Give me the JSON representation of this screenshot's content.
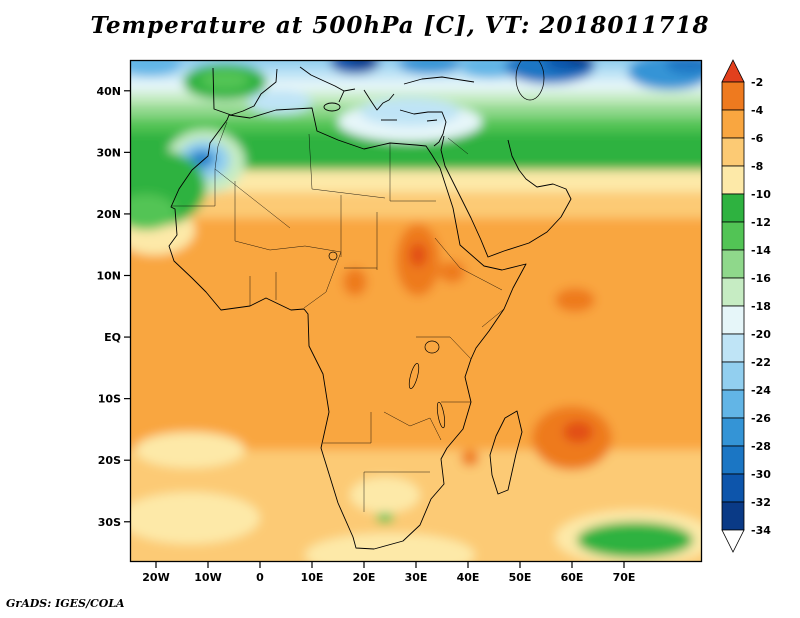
{
  "title": "Temperature at 500hPa [C], VT: 2018011718",
  "footer": "GrADS: IGES/COLA",
  "chart_data": {
    "type": "heatmap",
    "title": "Temperature at 500hPa [C], VT: 2018011718",
    "variable": "Temperature",
    "level": "500hPa",
    "units": "C",
    "valid_time": "2018011718",
    "region": "Africa / Mediterranean / western Indian Ocean",
    "lon_range": [
      -25,
      85
    ],
    "lat_range": [
      -36.5,
      45
    ],
    "grid": false,
    "contour_interval": 2,
    "x_ticks": [
      {
        "label": "20W",
        "lon": -20
      },
      {
        "label": "10W",
        "lon": -10
      },
      {
        "label": "0",
        "lon": 0
      },
      {
        "label": "10E",
        "lon": 10
      },
      {
        "label": "20E",
        "lon": 20
      },
      {
        "label": "30E",
        "lon": 30
      },
      {
        "label": "40E",
        "lon": 40
      },
      {
        "label": "50E",
        "lon": 50
      },
      {
        "label": "60E",
        "lon": 60
      },
      {
        "label": "70E",
        "lon": 70
      }
    ],
    "y_ticks": [
      {
        "label": "40N",
        "lat": 40
      },
      {
        "label": "30N",
        "lat": 30
      },
      {
        "label": "20N",
        "lat": 20
      },
      {
        "label": "10N",
        "lat": 10
      },
      {
        "label": "EQ",
        "lat": 0
      },
      {
        "label": "10S",
        "lat": -10
      },
      {
        "label": "20S",
        "lat": -20
      },
      {
        "label": "30S",
        "lat": -30
      }
    ],
    "legend": {
      "position": "right",
      "values": [
        -2,
        -4,
        -6,
        -8,
        -10,
        -12,
        -14,
        -16,
        -18,
        -20,
        -22,
        -24,
        -26,
        -28,
        -30,
        -32,
        -34
      ],
      "box_colors": [
        "#ee7a1f",
        "#f9a640",
        "#fcca74",
        "#fde9a8",
        "#2eb240",
        "#52c455",
        "#8fd88b",
        "#c6ecc3",
        "#e6f6f9",
        "#bfe4f6",
        "#92cfef",
        "#62b5e6",
        "#3494d6",
        "#1b76c4",
        "#0d55ab",
        "#0a3a86"
      ],
      "above_color": "#e2401d",
      "below_color": "#ffffff"
    },
    "grid_estimate": {
      "comment": "Approximate 500hPa temperature (C) read from the shaded field",
      "lons": [
        -20,
        -10,
        0,
        10,
        20,
        30,
        40,
        50,
        60,
        70
      ],
      "lats": [
        40,
        30,
        20,
        10,
        0,
        -10,
        -20,
        -30
      ],
      "values_c": [
        [
          -15,
          -18,
          -20,
          -21,
          -22,
          -22,
          -22,
          -24,
          -27,
          -24
        ],
        [
          -13,
          -16,
          -12,
          -12,
          -13,
          -14,
          -15,
          -13,
          -12,
          -11
        ],
        [
          -9,
          -10,
          -9,
          -8,
          -8,
          -8,
          -8,
          -8,
          -7,
          -7
        ],
        [
          -6,
          -6,
          -6,
          -6,
          -5,
          -4,
          -6,
          -6,
          -6,
          -6
        ],
        [
          -6,
          -6,
          -6,
          -6,
          -6,
          -6,
          -6,
          -6,
          -5,
          -6
        ],
        [
          -7,
          -6,
          -6,
          -6,
          -6,
          -6,
          -6,
          -6,
          -5,
          -6
        ],
        [
          -8,
          -7,
          -7,
          -6,
          -6,
          -6,
          -6,
          -6,
          -4,
          -6
        ],
        [
          -9,
          -9,
          -8,
          -8,
          -8,
          -8,
          -8,
          -8,
          -9,
          -11
        ]
      ]
    },
    "features": [
      "Warm pocket near -4C over Sudan/Ethiopia around 30E,13N",
      "Warm pocket near -4C over Indian Ocean east of Madagascar around 60E,17S",
      "Green band (-12 to -16C) across North Africa near 28-35N",
      "Cold blue air (-20C and colder) over Europe/Mediterranean, darkest (-30/-34C) along the northern edge",
      "Cool green patch (-12C) in the far southeast ocean near 70E,33S",
      "Cold pocket (-18 to -26C) over the subtropical Atlantic near Morocco around 10W,28N"
    ]
  }
}
